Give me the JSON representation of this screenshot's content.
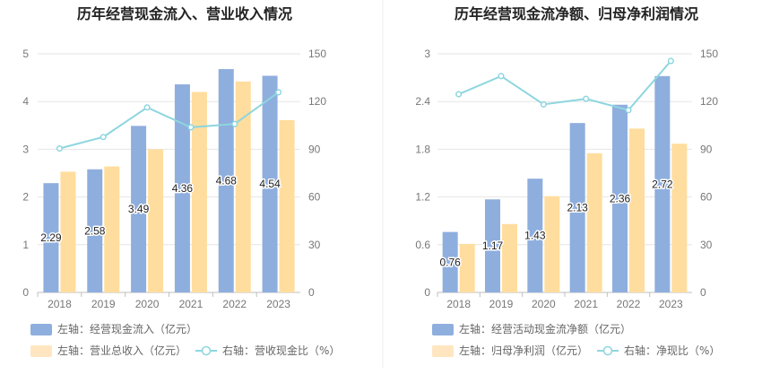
{
  "colors": {
    "bar_left": "#8eaede",
    "bar_right": "#ffdd9e",
    "line": "#8dd6df",
    "legend_bar_left": "#8eaede",
    "legend_bar_right": "#ffe6c0"
  },
  "chart_data": [
    {
      "type": "bar+line",
      "title": "历年经营现金流入、营业收入情况",
      "categories": [
        "2018",
        "2019",
        "2020",
        "2021",
        "2022",
        "2023"
      ],
      "left_axis": {
        "ticks": [
          "0",
          "1",
          "2",
          "3",
          "4",
          "5"
        ],
        "ylim": [
          0,
          5
        ]
      },
      "right_axis": {
        "ticks": [
          "0",
          "30",
          "60",
          "90",
          "120",
          "150"
        ],
        "ylim": [
          0,
          150
        ]
      },
      "series": [
        {
          "name": "左轴：经营现金流入（亿元）",
          "kind": "bar",
          "axis": "left",
          "values": [
            2.29,
            2.58,
            3.49,
            4.36,
            4.68,
            4.54
          ],
          "labels": [
            "2.29",
            "2.58",
            "3.49",
            "4.36",
            "4.68",
            "4.54"
          ]
        },
        {
          "name": "左轴：营业总收入（亿元）",
          "kind": "bar",
          "axis": "left",
          "values": [
            2.53,
            2.64,
            3.0,
            4.2,
            4.42,
            3.61
          ]
        },
        {
          "name": "右轴：营收现金比（%）",
          "kind": "line",
          "axis": "right",
          "values": [
            90.5,
            97.7,
            116.3,
            103.8,
            105.9,
            125.8
          ]
        }
      ],
      "legend": [
        "左轴：经营现金流入（亿元）",
        "左轴：营业总收入（亿元）",
        "右轴：营收现金比（%）"
      ]
    },
    {
      "type": "bar+line",
      "title": "历年经营现金流净额、归母净利润情况",
      "categories": [
        "2018",
        "2019",
        "2020",
        "2021",
        "2022",
        "2023"
      ],
      "left_axis": {
        "ticks": [
          "0",
          "0.6",
          "1.2",
          "1.8",
          "2.4",
          "3"
        ],
        "ylim": [
          0,
          3
        ]
      },
      "right_axis": {
        "ticks": [
          "0",
          "30",
          "60",
          "90",
          "120",
          "150"
        ],
        "ylim": [
          0,
          150
        ]
      },
      "series": [
        {
          "name": "左轴：经营活动现金流净额（亿元）",
          "kind": "bar",
          "axis": "left",
          "values": [
            0.76,
            1.17,
            1.43,
            2.13,
            2.36,
            2.72
          ],
          "labels": [
            "0.76",
            "1.17",
            "1.43",
            "2.13",
            "2.36",
            "2.72"
          ]
        },
        {
          "name": "左轴：归母净利润（亿元）",
          "kind": "bar",
          "axis": "left",
          "values": [
            0.61,
            0.86,
            1.21,
            1.75,
            2.06,
            1.87
          ]
        },
        {
          "name": "右轴：净现比（%）",
          "kind": "line",
          "axis": "right",
          "values": [
            124.6,
            136.0,
            118.2,
            121.7,
            114.6,
            145.5
          ]
        }
      ],
      "legend": [
        "左轴：经营活动现金流净额（亿元）",
        "左轴：归母净利润（亿元）",
        "右轴：净现比（%）"
      ]
    }
  ]
}
